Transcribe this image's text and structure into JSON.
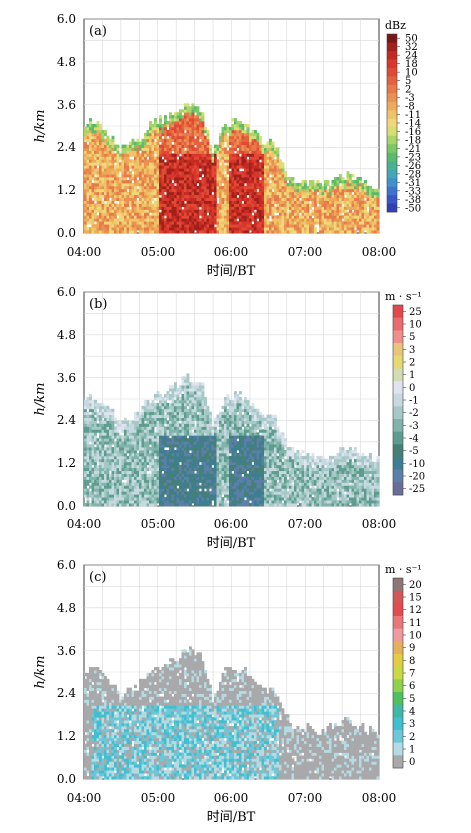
{
  "chart_data": [
    {
      "type": "heatmap",
      "panel": "(a)",
      "ylabel": "h/km",
      "xlabel": "时间/BT",
      "yticks": [
        "0.0",
        "1.2",
        "2.4",
        "3.6",
        "4.8",
        "6.0"
      ],
      "xticks": [
        "04:00",
        "05:00",
        "06:00",
        "07:00",
        "08:00"
      ],
      "xlim": [
        4,
        8
      ],
      "ylim": [
        0,
        6
      ],
      "colorbar_unit": "dBz",
      "colorbar_labels": [
        "50",
        "32",
        "24",
        "18",
        "10",
        "5",
        "2",
        "-3",
        "-8",
        "-11",
        "-14",
        "-16",
        "-18",
        "-21",
        "-23",
        "-26",
        "-28",
        "-31",
        "-33",
        "-38",
        "-50"
      ],
      "colorbar_colors": [
        "#7a1616",
        "#a0201c",
        "#c22a22",
        "#d9372c",
        "#e04a34",
        "#e4613e",
        "#e7794a",
        "#ea9150",
        "#edab5a",
        "#efc468",
        "#efd879",
        "#d8de72",
        "#a9d46a",
        "#7cc864",
        "#5bbb6c",
        "#49b391",
        "#41a9b4",
        "#3f92cc",
        "#3d74cf",
        "#3a55c8",
        "#3040b0"
      ],
      "cloud_top_km": [
        [
          4.0,
          3.0
        ],
        [
          4.2,
          3.05
        ],
        [
          4.5,
          2.3
        ],
        [
          4.75,
          2.6
        ],
        [
          4.9,
          3.0
        ],
        [
          5.2,
          3.3
        ],
        [
          5.4,
          3.6
        ],
        [
          5.6,
          3.4
        ],
        [
          5.75,
          2.2
        ],
        [
          5.9,
          3.0
        ],
        [
          6.1,
          3.1
        ],
        [
          6.25,
          2.9
        ],
        [
          6.45,
          2.5
        ],
        [
          6.6,
          2.4
        ],
        [
          6.8,
          1.5
        ],
        [
          7.2,
          1.3
        ],
        [
          7.6,
          1.6
        ],
        [
          7.9,
          1.3
        ]
      ],
      "strongest_echo_periods": [
        "05:00-05:45",
        "06:00-06:25"
      ]
    },
    {
      "type": "heatmap",
      "panel": "(b)",
      "ylabel": "h/km",
      "xlabel": "时间/BT",
      "yticks": [
        "0.0",
        "1.2",
        "2.4",
        "3.6",
        "4.8",
        "6.0"
      ],
      "xticks": [
        "04:00",
        "05:00",
        "06:00",
        "07:00",
        "08:00"
      ],
      "xlim": [
        4,
        8
      ],
      "ylim": [
        0,
        6
      ],
      "colorbar_unit": "m · s⁻¹",
      "colorbar_labels": [
        "25",
        "10",
        "5",
        "3",
        "2",
        "1",
        "0",
        "-1",
        "-2",
        "-3",
        "-4",
        "-5",
        "-10",
        "-20",
        "-25"
      ],
      "colorbar_colors": [
        "#e2474c",
        "#ea6a6d",
        "#ef8e8b",
        "#e9c57c",
        "#e4d973",
        "#d3dcb3",
        "#dfe3ef",
        "#c6d9e0",
        "#a6c9c6",
        "#80b3aa",
        "#5e9d8e",
        "#467f74",
        "#3e7e92",
        "#5b7fa8",
        "#6a6d96"
      ],
      "cloud_top_km": [
        [
          4.0,
          3.0
        ],
        [
          4.2,
          3.0
        ],
        [
          4.5,
          2.3
        ],
        [
          4.75,
          2.6
        ],
        [
          4.9,
          3.0
        ],
        [
          5.2,
          3.3
        ],
        [
          5.4,
          3.6
        ],
        [
          5.6,
          3.4
        ],
        [
          5.75,
          2.2
        ],
        [
          5.9,
          3.0
        ],
        [
          6.1,
          3.1
        ],
        [
          6.25,
          2.9
        ],
        [
          6.45,
          2.5
        ],
        [
          6.6,
          2.4
        ],
        [
          6.8,
          1.5
        ],
        [
          7.2,
          1.3
        ],
        [
          7.6,
          1.6
        ],
        [
          7.9,
          1.3
        ]
      ],
      "strongest_downdraft_periods": [
        "05:05-05:40",
        "06:00-06:25"
      ]
    },
    {
      "type": "heatmap",
      "panel": "(c)",
      "ylabel": "h/km",
      "xlabel": "时间/BT",
      "yticks": [
        "0.0",
        "1.2",
        "2.4",
        "3.6",
        "4.8",
        "6.0"
      ],
      "xticks": [
        "04:00",
        "05:00",
        "06:00",
        "07:00",
        "08:00"
      ],
      "xlim": [
        4,
        8
      ],
      "ylim": [
        0,
        6
      ],
      "colorbar_unit": "m · s⁻¹",
      "colorbar_labels": [
        "20",
        "15",
        "12",
        "11",
        "10",
        "9",
        "8",
        "7",
        "6",
        "5",
        "4",
        "3",
        "2",
        "1",
        "0"
      ],
      "colorbar_colors": [
        "#8d7676",
        "#d25657",
        "#e24b4f",
        "#e9777a",
        "#ef9aa0",
        "#e7b05c",
        "#e2cc45",
        "#c8d945",
        "#8fd14b",
        "#50bf5e",
        "#3fb8a8",
        "#40bfd0",
        "#6cc8d8",
        "#b5dbe2",
        "#a9a9ab"
      ],
      "cloud_top_km": [
        [
          4.0,
          3.0
        ],
        [
          4.2,
          3.0
        ],
        [
          4.5,
          2.3
        ],
        [
          4.75,
          2.6
        ],
        [
          4.9,
          3.0
        ],
        [
          5.2,
          3.3
        ],
        [
          5.4,
          3.6
        ],
        [
          5.6,
          3.4
        ],
        [
          5.75,
          2.2
        ],
        [
          5.9,
          3.0
        ],
        [
          6.1,
          3.1
        ],
        [
          6.25,
          2.9
        ],
        [
          6.45,
          2.5
        ],
        [
          6.6,
          2.4
        ],
        [
          6.8,
          1.5
        ],
        [
          7.2,
          1.3
        ],
        [
          7.6,
          1.6
        ],
        [
          7.9,
          1.3
        ]
      ],
      "high_value_layer_km": [
        0,
        2.0
      ]
    }
  ]
}
